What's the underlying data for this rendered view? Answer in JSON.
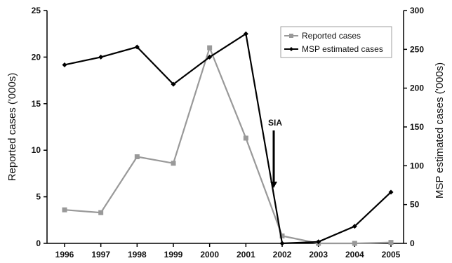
{
  "chart_data": {
    "type": "line",
    "categories": [
      "1996",
      "1997",
      "1998",
      "1999",
      "2000",
      "2001",
      "2002",
      "2003",
      "2004",
      "2005"
    ],
    "ylabel_left": "Reported cases ('000s)",
    "ylabel_right": "MSP estimated cases ('000s)",
    "ylim_left": [
      0,
      25
    ],
    "yticks_left": [
      "0",
      "5",
      "10",
      "15",
      "20",
      "25"
    ],
    "ylim_right": [
      0,
      300
    ],
    "yticks_right": [
      "0",
      "50",
      "100",
      "150",
      "200",
      "250",
      "300"
    ],
    "series": [
      {
        "name": "Reported cases",
        "axis": "left",
        "color": "#999999",
        "marker": "square",
        "values": [
          3.6,
          3.3,
          9.3,
          8.6,
          21.0,
          11.3,
          0.8,
          0.0,
          0.0,
          0.1
        ]
      },
      {
        "name": "MSP estimated cases",
        "axis": "right",
        "color": "#000000",
        "marker": "diamond",
        "values": [
          230,
          240,
          253,
          205,
          240,
          270,
          0,
          2,
          22,
          66
        ]
      }
    ],
    "annotations": [
      {
        "text": "SIA",
        "x": "2002"
      }
    ],
    "legend_position": "top-right",
    "grid": false
  }
}
